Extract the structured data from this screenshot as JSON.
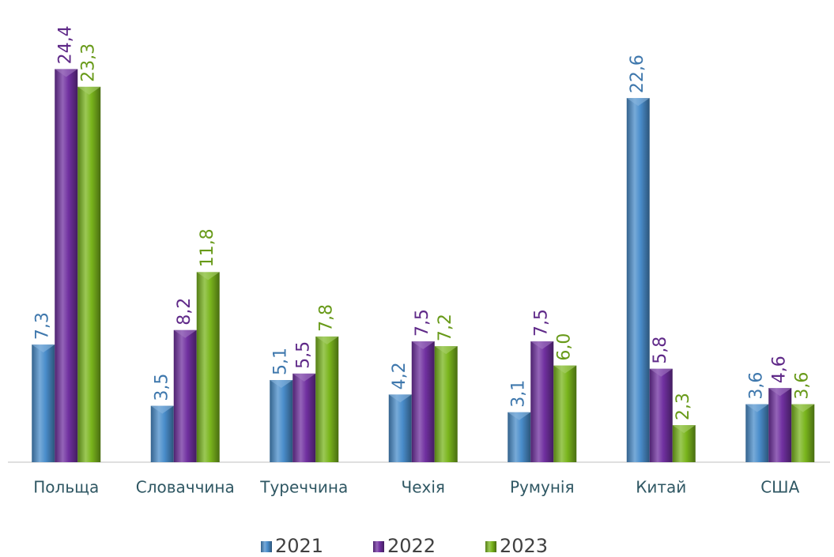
{
  "chart_data": {
    "type": "bar",
    "categories": [
      "Польща",
      "Словаччина",
      "Туреччина",
      "Чехія",
      "Румунія",
      "Китай",
      "США"
    ],
    "series": [
      {
        "name": "2021",
        "color": "#4a8dcb",
        "values": [
          7.3,
          3.5,
          5.1,
          4.2,
          3.1,
          22.6,
          3.6
        ],
        "value_labels": [
          "7,3",
          "3,5",
          "5,1",
          "4,2",
          "3,1",
          "22,6",
          "3,6"
        ]
      },
      {
        "name": "2022",
        "color": "#7030a0",
        "values": [
          24.4,
          8.2,
          5.5,
          7.5,
          7.5,
          5.8,
          4.6
        ],
        "value_labels": [
          "24,4",
          "8,2",
          "5,5",
          "7,5",
          "7,5",
          "5,8",
          "4,6"
        ]
      },
      {
        "name": "2023",
        "color": "#7ab51d",
        "values": [
          23.3,
          11.8,
          7.8,
          7.2,
          6.0,
          2.3,
          3.6
        ],
        "value_labels": [
          "23,3",
          "11,8",
          "7,8",
          "7,2",
          "6,0",
          "2,3",
          "3,6"
        ]
      }
    ],
    "ylim": [
      0,
      28
    ],
    "legend": "bottom"
  }
}
